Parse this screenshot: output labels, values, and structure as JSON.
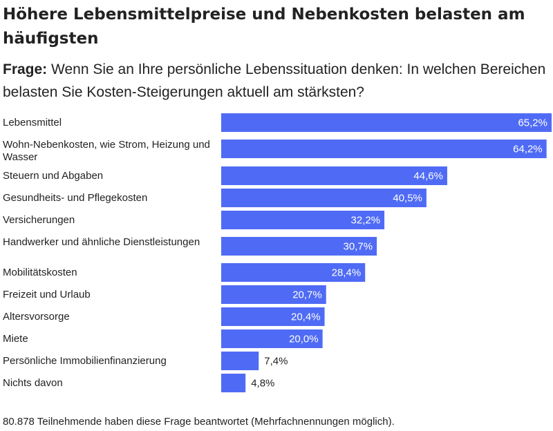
{
  "title": "Höhere Lebensmittelpreise und Nebenkosten belasten am häufigsten",
  "question": {
    "prefix": "Frage:",
    "text": "Wenn Sie an Ihre persönliche Lebenssituation denken: In welchen Bereichen belasten Sie Kosten-Steigerungen aktuell am stärksten?"
  },
  "footnote": "80.878 Teilnehmende haben diese Frage beantwortet (Mehrfachnennungen möglich).",
  "chart_data": {
    "type": "bar",
    "orientation": "horizontal",
    "color": "#4f6bf5",
    "label_color_inside": "#ffffff",
    "label_color_outside": "#222222",
    "xlim": [
      0,
      65.2
    ],
    "categories": [
      "Lebensmittel",
      "Wohn-Nebenkosten, wie Strom, Heizung und Wasser",
      "Steuern und Abgaben",
      "Gesundheits- und Pflegekosten",
      "Versicherungen",
      "Handwerker und ähnliche Dienstleistungen",
      "Mobilitätskosten",
      "Freizeit und Urlaub",
      "Altersvorsorge",
      "Miete",
      "Persönliche Immobilienfinanzierung",
      "Nichts davon"
    ],
    "values": [
      65.2,
      64.2,
      44.6,
      40.5,
      32.2,
      30.7,
      28.4,
      20.7,
      20.4,
      20.0,
      7.4,
      4.8
    ],
    "value_labels": [
      "65,2%",
      "64,2%",
      "44,6%",
      "40,5%",
      "32,2%",
      "30,7%",
      "28,4%",
      "20,7%",
      "20,4%",
      "20,0%",
      "7,4%",
      "4,8%"
    ]
  }
}
